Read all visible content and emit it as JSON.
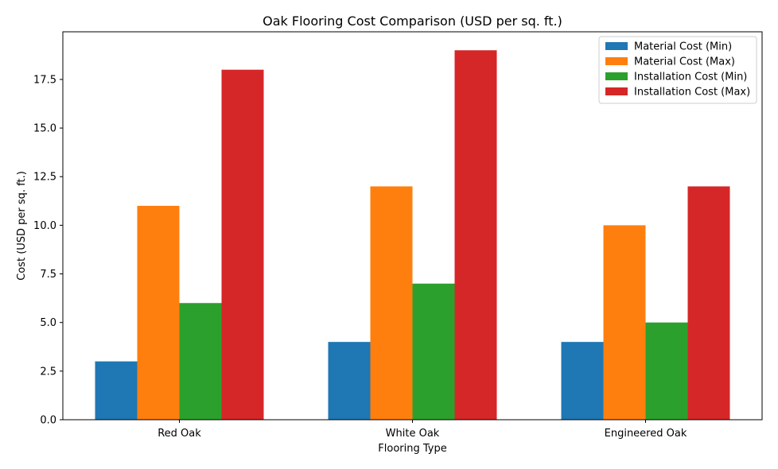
{
  "chart_data": {
    "type": "bar",
    "title": "Oak Flooring Cost Comparison (USD per sq. ft.)",
    "xlabel": "Flooring Type",
    "ylabel": "Cost (USD per sq. ft.)",
    "categories": [
      "Red Oak",
      "White Oak",
      "Engineered Oak"
    ],
    "series": [
      {
        "name": "Material Cost (Min)",
        "color": "#1f77b4",
        "values": [
          3,
          4,
          4
        ]
      },
      {
        "name": "Material Cost (Max)",
        "color": "#ff7f0e",
        "values": [
          11,
          12,
          10
        ]
      },
      {
        "name": "Installation Cost (Min)",
        "color": "#2ca02c",
        "values": [
          6,
          7,
          5
        ]
      },
      {
        "name": "Installation Cost (Max)",
        "color": "#d62728",
        "values": [
          18,
          19,
          12
        ]
      }
    ],
    "ylim": [
      0,
      19.95
    ],
    "yticks": [
      "0.0",
      "2.5",
      "5.0",
      "7.5",
      "10.0",
      "12.5",
      "15.0",
      "17.5"
    ],
    "grid": false,
    "legend_position": "top-right"
  }
}
